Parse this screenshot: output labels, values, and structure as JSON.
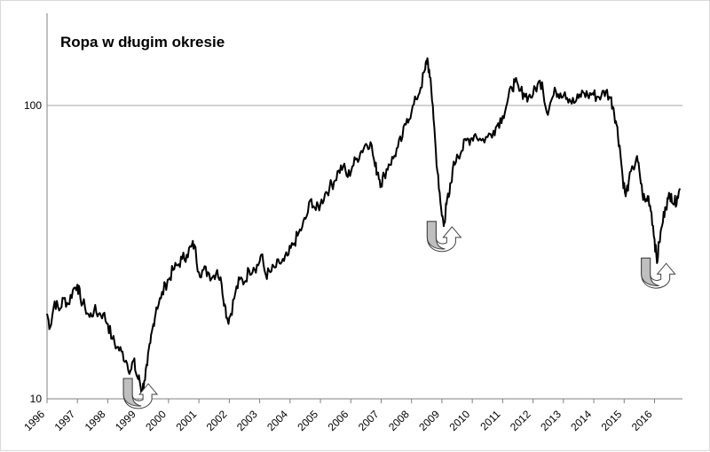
{
  "chart_data": {
    "type": "line",
    "title": "Ropa w długim okresie",
    "xlabel": "",
    "ylabel": "",
    "y_scale": "log",
    "ylim": [
      10,
      160
    ],
    "y_ticks": [
      10,
      100
    ],
    "y_tick_labels": [
      "10",
      "100"
    ],
    "grid": "horizontal",
    "x_ticks": [
      "1996",
      "1997",
      "1998",
      "1999",
      "2000",
      "2001",
      "2002",
      "2003",
      "2004",
      "2005",
      "2006",
      "2007",
      "2008",
      "2009",
      "2010",
      "2011",
      "2012",
      "2013",
      "2014",
      "2015",
      "2016"
    ],
    "series": [
      {
        "color": "#000000",
        "points": [
          [
            1996.0,
            19.5
          ],
          [
            1996.1,
            17.5
          ],
          [
            1996.25,
            21.5
          ],
          [
            1996.4,
            20.0
          ],
          [
            1996.55,
            22.0
          ],
          [
            1996.7,
            21.0
          ],
          [
            1996.85,
            23.5
          ],
          [
            1997.0,
            24.5
          ],
          [
            1997.1,
            22.0
          ],
          [
            1997.25,
            20.5
          ],
          [
            1997.4,
            19.0
          ],
          [
            1997.55,
            20.0
          ],
          [
            1997.7,
            19.5
          ],
          [
            1997.85,
            19.5
          ],
          [
            1998.0,
            18.0
          ],
          [
            1998.15,
            16.0
          ],
          [
            1998.3,
            15.0
          ],
          [
            1998.45,
            14.5
          ],
          [
            1998.6,
            13.5
          ],
          [
            1998.75,
            12.5
          ],
          [
            1998.85,
            13.5
          ],
          [
            1998.95,
            12.0
          ],
          [
            1999.05,
            11.5
          ],
          [
            1999.12,
            10.5
          ],
          [
            1999.2,
            11.5
          ],
          [
            1999.3,
            13.0
          ],
          [
            1999.4,
            15.5
          ],
          [
            1999.5,
            18.0
          ],
          [
            1999.6,
            20.5
          ],
          [
            1999.75,
            22.0
          ],
          [
            1999.9,
            24.5
          ],
          [
            2000.0,
            25.5
          ],
          [
            2000.15,
            27.5
          ],
          [
            2000.3,
            28.5
          ],
          [
            2000.45,
            30.0
          ],
          [
            2000.6,
            31.0
          ],
          [
            2000.75,
            33.0
          ],
          [
            2000.85,
            33.5
          ],
          [
            2001.0,
            27.0
          ],
          [
            2001.15,
            27.5
          ],
          [
            2001.3,
            27.0
          ],
          [
            2001.45,
            26.0
          ],
          [
            2001.6,
            27.5
          ],
          [
            2001.75,
            24.5
          ],
          [
            2001.85,
            21.0
          ],
          [
            2001.95,
            18.5
          ],
          [
            2002.05,
            19.5
          ],
          [
            2002.2,
            23.0
          ],
          [
            2002.35,
            25.5
          ],
          [
            2002.5,
            25.0
          ],
          [
            2002.65,
            27.5
          ],
          [
            2002.8,
            28.0
          ],
          [
            2002.95,
            28.5
          ],
          [
            2003.05,
            31.0
          ],
          [
            2003.2,
            26.5
          ],
          [
            2003.35,
            27.0
          ],
          [
            2003.5,
            28.0
          ],
          [
            2003.65,
            29.0
          ],
          [
            2003.8,
            29.5
          ],
          [
            2003.95,
            31.0
          ],
          [
            2004.1,
            33.5
          ],
          [
            2004.25,
            36.0
          ],
          [
            2004.4,
            38.5
          ],
          [
            2004.55,
            42.0
          ],
          [
            2004.7,
            48.0
          ],
          [
            2004.85,
            44.0
          ],
          [
            2005.0,
            46.0
          ],
          [
            2005.15,
            50.0
          ],
          [
            2005.3,
            52.5
          ],
          [
            2005.45,
            55.0
          ],
          [
            2005.6,
            60.0
          ],
          [
            2005.75,
            62.0
          ],
          [
            2005.9,
            57.0
          ],
          [
            2006.05,
            62.0
          ],
          [
            2006.2,
            66.0
          ],
          [
            2006.35,
            70.0
          ],
          [
            2006.5,
            74.0
          ],
          [
            2006.65,
            75.0
          ],
          [
            2006.8,
            62.0
          ],
          [
            2006.9,
            59.0
          ],
          [
            2007.0,
            54.0
          ],
          [
            2007.1,
            58.0
          ],
          [
            2007.25,
            63.0
          ],
          [
            2007.4,
            66.0
          ],
          [
            2007.55,
            72.0
          ],
          [
            2007.7,
            78.0
          ],
          [
            2007.85,
            90.0
          ],
          [
            2008.0,
            95.0
          ],
          [
            2008.15,
            105.0
          ],
          [
            2008.3,
            115.0
          ],
          [
            2008.45,
            133.0
          ],
          [
            2008.52,
            145.0
          ],
          [
            2008.6,
            125.0
          ],
          [
            2008.7,
            100.0
          ],
          [
            2008.8,
            70.0
          ],
          [
            2008.9,
            52.0
          ],
          [
            2009.0,
            42.0
          ],
          [
            2009.08,
            40.0
          ],
          [
            2009.15,
            46.0
          ],
          [
            2009.25,
            50.0
          ],
          [
            2009.35,
            60.0
          ],
          [
            2009.5,
            68.0
          ],
          [
            2009.65,
            70.0
          ],
          [
            2009.8,
            76.0
          ],
          [
            2009.95,
            77.0
          ],
          [
            2010.1,
            80.0
          ],
          [
            2010.3,
            76.0
          ],
          [
            2010.5,
            78.0
          ],
          [
            2010.7,
            82.0
          ],
          [
            2010.85,
            87.0
          ],
          [
            2011.0,
            92.0
          ],
          [
            2011.15,
            102.0
          ],
          [
            2011.3,
            115.0
          ],
          [
            2011.4,
            120.0
          ],
          [
            2011.55,
            112.0
          ],
          [
            2011.7,
            110.0
          ],
          [
            2011.85,
            107.0
          ],
          [
            2012.0,
            109.0
          ],
          [
            2012.15,
            118.0
          ],
          [
            2012.3,
            120.0
          ],
          [
            2012.45,
            95.0
          ],
          [
            2012.6,
            104.0
          ],
          [
            2012.75,
            112.0
          ],
          [
            2012.9,
            110.0
          ],
          [
            2013.05,
            111.0
          ],
          [
            2013.2,
            105.0
          ],
          [
            2013.35,
            102.0
          ],
          [
            2013.5,
            106.0
          ],
          [
            2013.65,
            111.0
          ],
          [
            2013.8,
            108.0
          ],
          [
            2013.95,
            110.0
          ],
          [
            2014.1,
            107.0
          ],
          [
            2014.25,
            108.0
          ],
          [
            2014.4,
            112.0
          ],
          [
            2014.55,
            106.0
          ],
          [
            2014.65,
            98.0
          ],
          [
            2014.75,
            86.0
          ],
          [
            2014.85,
            73.0
          ],
          [
            2014.95,
            57.0
          ],
          [
            2015.05,
            49.0
          ],
          [
            2015.15,
            55.0
          ],
          [
            2015.3,
            61.0
          ],
          [
            2015.4,
            66.0
          ],
          [
            2015.5,
            60.0
          ],
          [
            2015.6,
            50.0
          ],
          [
            2015.7,
            47.0
          ],
          [
            2015.8,
            49.0
          ],
          [
            2015.9,
            43.0
          ],
          [
            2016.0,
            35.0
          ],
          [
            2016.08,
            29.0
          ],
          [
            2016.15,
            34.0
          ],
          [
            2016.25,
            39.0
          ],
          [
            2016.35,
            45.0
          ],
          [
            2016.45,
            48.0
          ],
          [
            2016.55,
            50.0
          ],
          [
            2016.65,
            46.0
          ],
          [
            2016.75,
            49.0
          ],
          [
            2016.85,
            52.0
          ]
        ]
      }
    ],
    "annotations": [
      {
        "type": "u-turn-arrow",
        "x": 1999.1,
        "y": 10.5
      },
      {
        "type": "u-turn-arrow",
        "x": 2009.1,
        "y": 36.0
      },
      {
        "type": "u-turn-arrow",
        "x": 2016.15,
        "y": 27.0
      }
    ]
  }
}
